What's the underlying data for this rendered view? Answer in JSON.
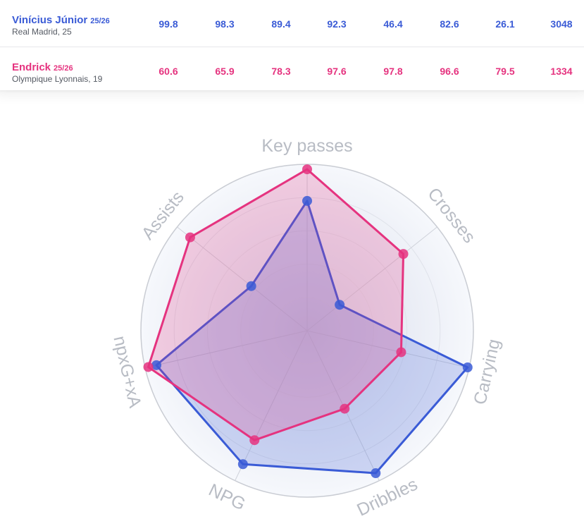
{
  "players": [
    {
      "name": "Vinícius Júnior",
      "season": "25/26",
      "club": "Real Madrid, 25",
      "color": "#3a5bd6",
      "values": [
        "99.8",
        "98.3",
        "89.4",
        "92.3",
        "46.4",
        "82.6",
        "26.1",
        "3048"
      ]
    },
    {
      "name": "Endrick",
      "season": "25/26",
      "club": "Olympique Lyonnais, 19",
      "color": "#e5337f",
      "values": [
        "60.6",
        "65.9",
        "78.3",
        "97.6",
        "97.8",
        "96.6",
        "79.5",
        "1334"
      ]
    }
  ],
  "chart_data": {
    "type": "radar",
    "axes": [
      "Key passes",
      "Crosses",
      "Carrying",
      "Dribbles",
      "NPG",
      "npxG+xA",
      "Assists"
    ],
    "range": [
      0,
      100
    ],
    "series": [
      {
        "name": "Vinícius Júnior",
        "color": "#3a5bd6",
        "values": [
          78,
          25,
          99,
          95,
          89,
          93,
          43
        ]
      },
      {
        "name": "Endrick",
        "color": "#e5337f",
        "values": [
          97,
          74,
          58,
          52,
          73,
          98,
          90
        ]
      }
    ]
  }
}
